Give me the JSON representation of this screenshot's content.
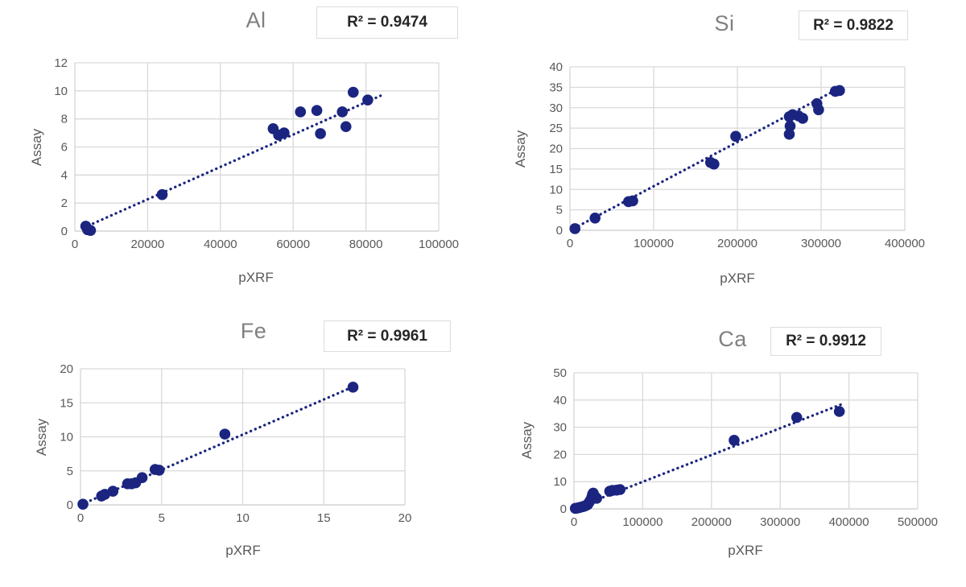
{
  "page": {
    "background": "#ffffff"
  },
  "style": {
    "marker_color": "#1b2580",
    "trend_color": "#1b2580",
    "grid_color": "#d9d9d9",
    "axis_line_color": "#c9c9c9",
    "tick_color": "#595959",
    "title_color": "#808080",
    "r2_color": "#262626",
    "r2_box_bg": "#ffffff",
    "r2_box_border": "#dcdcdc"
  },
  "chart_data": [
    {
      "type": "scatter",
      "element": "Al",
      "title": "Al",
      "r2_label": "R² = 0.9474",
      "xlabel": "pXRF",
      "ylabel": "Assay",
      "xlim": [
        0,
        100000
      ],
      "ylim": [
        0,
        12
      ],
      "xticks": [
        0,
        20000,
        40000,
        60000,
        80000,
        100000
      ],
      "yticks": [
        0,
        2,
        4,
        6,
        8,
        10,
        12
      ],
      "grid": true,
      "legend": "none",
      "trendline": {
        "style": "dotted",
        "x1": 2500,
        "y1": 0.25,
        "x2": 84000,
        "y2": 9.65
      },
      "points": [
        [
          3000,
          0.35
        ],
        [
          3500,
          0.1
        ],
        [
          4300,
          0.05
        ],
        [
          24000,
          2.6
        ],
        [
          54500,
          7.3
        ],
        [
          56000,
          6.85
        ],
        [
          57500,
          7.0
        ],
        [
          62000,
          8.5
        ],
        [
          66500,
          8.6
        ],
        [
          67500,
          6.95
        ],
        [
          73500,
          8.5
        ],
        [
          74500,
          7.45
        ],
        [
          76500,
          9.9
        ],
        [
          80500,
          9.35
        ]
      ]
    },
    {
      "type": "scatter",
      "element": "Si",
      "title": "Si",
      "r2_label": "R² = 0.9822",
      "xlabel": "pXRF",
      "ylabel": "Assay",
      "xlim": [
        0,
        400000
      ],
      "ylim": [
        0,
        40
      ],
      "xticks": [
        0,
        100000,
        200000,
        300000,
        400000
      ],
      "yticks": [
        0,
        5,
        10,
        15,
        20,
        25,
        30,
        35,
        40
      ],
      "grid": true,
      "legend": "none",
      "trendline": {
        "style": "dotted",
        "x1": 5000,
        "y1": 0.5,
        "x2": 322000,
        "y2": 34.8
      },
      "points": [
        [
          6000,
          0.4
        ],
        [
          30000,
          3.0
        ],
        [
          70000,
          7.0
        ],
        [
          75000,
          7.2
        ],
        [
          168000,
          16.6
        ],
        [
          172000,
          16.2
        ],
        [
          198000,
          23.0
        ],
        [
          262000,
          23.5
        ],
        [
          263000,
          25.5
        ],
        [
          262000,
          27.8
        ],
        [
          266000,
          28.3
        ],
        [
          273000,
          28.0
        ],
        [
          278000,
          27.4
        ],
        [
          295000,
          31.0
        ],
        [
          297000,
          29.5
        ],
        [
          317000,
          34.0
        ],
        [
          322000,
          34.2
        ]
      ]
    },
    {
      "type": "scatter",
      "element": "Fe",
      "title": "Fe",
      "r2_label": "R² = 0.9961",
      "xlabel": "pXRF",
      "ylabel": "Assay",
      "xlim": [
        0,
        20
      ],
      "ylim": [
        0,
        20
      ],
      "xticks": [
        0,
        5,
        10,
        15,
        20
      ],
      "yticks": [
        0,
        5,
        10,
        15,
        20
      ],
      "grid": true,
      "legend": "none",
      "trendline": {
        "style": "dotted",
        "x1": 0.05,
        "y1": 0.05,
        "x2": 16.9,
        "y2": 17.45
      },
      "points": [
        [
          0.15,
          0.1
        ],
        [
          1.3,
          1.3
        ],
        [
          1.5,
          1.55
        ],
        [
          2.0,
          2.0
        ],
        [
          2.9,
          3.1
        ],
        [
          3.15,
          3.1
        ],
        [
          3.4,
          3.25
        ],
        [
          3.8,
          4.0
        ],
        [
          4.6,
          5.2
        ],
        [
          4.85,
          5.1
        ],
        [
          8.9,
          10.4
        ],
        [
          16.8,
          17.3
        ]
      ]
    },
    {
      "type": "scatter",
      "element": "Ca",
      "title": "Ca",
      "r2_label": "R² = 0.9912",
      "xlabel": "pXRF",
      "ylabel": "Assay",
      "xlim": [
        0,
        500000
      ],
      "ylim": [
        0,
        50
      ],
      "xticks": [
        0,
        100000,
        200000,
        300000,
        400000,
        500000
      ],
      "yticks": [
        0,
        10,
        20,
        30,
        40,
        50
      ],
      "grid": true,
      "legend": "none",
      "trendline": {
        "style": "dotted",
        "x1": 2000,
        "y1": 0.3,
        "x2": 390000,
        "y2": 38.5
      },
      "points": [
        [
          2000,
          0.2
        ],
        [
          5000,
          0.3
        ],
        [
          8000,
          0.5
        ],
        [
          11000,
          0.7
        ],
        [
          14000,
          0.9
        ],
        [
          17000,
          1.2
        ],
        [
          20000,
          1.6
        ],
        [
          22000,
          2.4
        ],
        [
          24000,
          3.2
        ],
        [
          26000,
          4.3
        ],
        [
          27000,
          5.3
        ],
        [
          28000,
          5.8
        ],
        [
          30000,
          4.7
        ],
        [
          33000,
          3.9
        ],
        [
          52000,
          6.5
        ],
        [
          56000,
          6.8
        ],
        [
          62000,
          6.9
        ],
        [
          67000,
          7.1
        ],
        [
          233000,
          25.2
        ],
        [
          324000,
          33.6
        ],
        [
          386000,
          35.8
        ]
      ]
    }
  ]
}
